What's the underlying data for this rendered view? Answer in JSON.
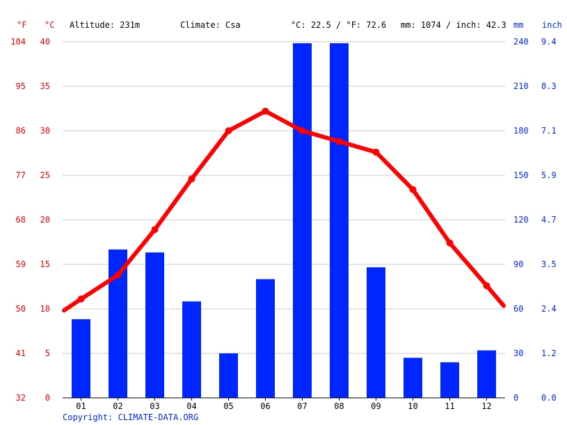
{
  "header": {
    "unit_f": "°F",
    "unit_c": "°C",
    "altitude": "Altitude: 231m",
    "climate": "Climate: Csa",
    "temp_avg": "°C: 22.5 / °F: 72.6",
    "precip_total": "mm: 1074 / inch: 42.3",
    "unit_mm": "mm",
    "unit_inch": "inch"
  },
  "copyright": "Copyright: CLIMATE-DATA.ORG",
  "colors": {
    "temperature": "#ff0000",
    "precipitation": "#0026ff",
    "grid": "#c8c8c8",
    "axis": "#000000"
  },
  "chart_data": {
    "type": "bar",
    "categories": [
      "01",
      "02",
      "03",
      "04",
      "05",
      "06",
      "07",
      "08",
      "09",
      "10",
      "11",
      "12"
    ],
    "series": [
      {
        "type": "bar",
        "axis": "right",
        "values": [
          53,
          100,
          98,
          65,
          30,
          80,
          239,
          239,
          88,
          27,
          24,
          32
        ]
      },
      {
        "type": "line",
        "axis": "left",
        "values": [
          11.1,
          13.8,
          18.9,
          24.6,
          30.0,
          32.2,
          30.0,
          28.8,
          27.6,
          23.4,
          17.4,
          12.6
        ]
      }
    ],
    "y_left": {
      "ticks_c": [
        "0",
        "5",
        "10",
        "15",
        "20",
        "25",
        "30",
        "35",
        "40"
      ],
      "ticks_f": [
        "32",
        "41",
        "50",
        "59",
        "68",
        "77",
        "86",
        "95",
        "104"
      ],
      "range": [
        0,
        40
      ]
    },
    "y_right": {
      "ticks_mm": [
        "0",
        "30",
        "60",
        "90",
        "120",
        "150",
        "180",
        "210",
        "240"
      ],
      "ticks_inch": [
        "0.0",
        "1.2",
        "2.4",
        "3.5",
        "4.7",
        "5.9",
        "7.1",
        "8.3",
        "9.4"
      ],
      "range": [
        0,
        240
      ]
    },
    "grid": true,
    "legend": "none"
  }
}
